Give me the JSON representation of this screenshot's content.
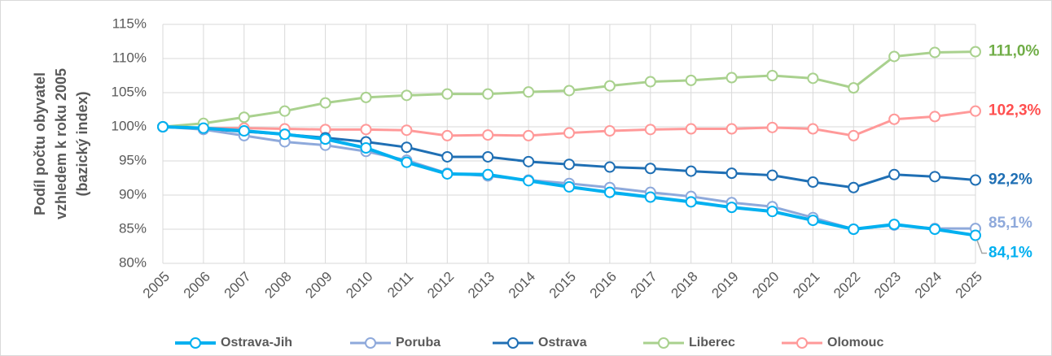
{
  "chart_data": {
    "type": "line",
    "y_label": [
      "Podíl počtu obyvatel",
      "vzhledem k roku 2005",
      "(bazický index)"
    ],
    "categories": [
      "2005",
      "2006",
      "2007",
      "2008",
      "2009",
      "2010",
      "2011",
      "2012",
      "2013",
      "2014",
      "2015",
      "2016",
      "2017",
      "2018",
      "2019",
      "2020",
      "2021",
      "2022",
      "2023",
      "2024",
      "2025"
    ],
    "ylim": [
      80,
      115
    ],
    "yticks": [
      {
        "value": 80,
        "label": "80%"
      },
      {
        "value": 85,
        "label": "85%"
      },
      {
        "value": 90,
        "label": "90%"
      },
      {
        "value": 95,
        "label": "95%"
      },
      {
        "value": 100,
        "label": "100%"
      },
      {
        "value": 105,
        "label": "105%"
      },
      {
        "value": 110,
        "label": "110%"
      },
      {
        "value": 115,
        "label": "115%"
      }
    ],
    "grid": true,
    "legend": "bottom",
    "series": [
      {
        "name": "Ostrava-Jih",
        "color": "#00b0f0",
        "label_color": "#00b0f0",
        "end_label": "84,1%",
        "values": [
          100,
          99.8,
          99.4,
          98.9,
          98.2,
          96.9,
          94.8,
          93.1,
          93.0,
          92.1,
          91.2,
          90.4,
          89.7,
          89.0,
          88.2,
          87.6,
          86.3,
          85.0,
          85.7,
          85.0,
          84.1
        ]
      },
      {
        "name": "Poruba",
        "color": "#8ea9db",
        "label_color": "#8ea9db",
        "end_label": "85,1%",
        "values": [
          100,
          99.6,
          98.7,
          97.8,
          97.3,
          96.4,
          95.1,
          93.2,
          92.8,
          92.2,
          91.7,
          91.1,
          90.4,
          89.8,
          88.9,
          88.3,
          86.7,
          85.0,
          85.6,
          85.1,
          85.1
        ]
      },
      {
        "name": "Ostrava",
        "color": "#1f6fb4",
        "label_color": "#1f6fb4",
        "end_label": "92,2%",
        "values": [
          100,
          99.7,
          99.3,
          98.9,
          98.4,
          97.8,
          97.0,
          95.6,
          95.6,
          94.9,
          94.5,
          94.1,
          93.9,
          93.5,
          93.2,
          92.9,
          91.9,
          91.1,
          93.0,
          92.7,
          92.2
        ]
      },
      {
        "name": "Liberec",
        "color": "#a9d18e",
        "label_color": "#70ad47",
        "end_label": "111,0%",
        "values": [
          100,
          100.5,
          101.4,
          102.3,
          103.5,
          104.3,
          104.6,
          104.8,
          104.8,
          105.1,
          105.3,
          106.0,
          106.6,
          106.8,
          107.2,
          107.5,
          107.1,
          105.7,
          110.3,
          110.9,
          111.0
        ]
      },
      {
        "name": "Olomouc",
        "color": "#ff9999",
        "label_color": "#ff4f4f",
        "end_label": "102,3%",
        "values": [
          100,
          99.8,
          99.8,
          99.7,
          99.6,
          99.6,
          99.5,
          98.7,
          98.8,
          98.7,
          99.1,
          99.4,
          99.6,
          99.7,
          99.7,
          99.9,
          99.7,
          98.7,
          101.1,
          101.5,
          102.3
        ]
      }
    ]
  }
}
